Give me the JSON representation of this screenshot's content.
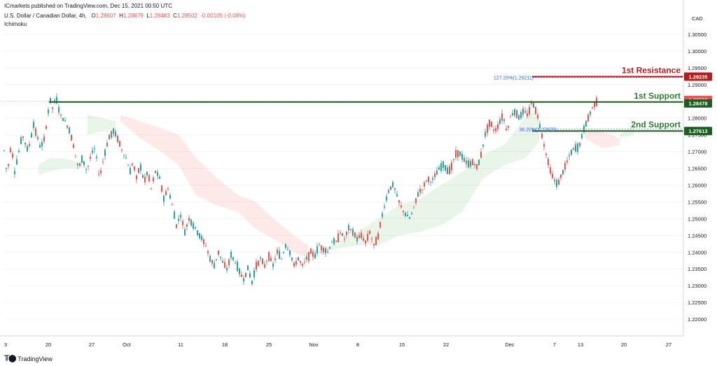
{
  "header": {
    "published": "ICmarkets published on TradingView.com, Dec 15, 2021 00:50 UTC",
    "symbol": "U.S. Dollar / Canadian Dollar, 4h,",
    "ohlc": [
      {
        "k": "O",
        "v": "1.28607"
      },
      {
        "k": "H",
        "v": "1.28679"
      },
      {
        "k": "L",
        "v": "1.28483"
      },
      {
        "k": "C",
        "v": "1.28502"
      }
    ],
    "change": "-0.00105 (-0.08%)",
    "indicator": "Ichimoku"
  },
  "footer": {
    "brand": "TradingView"
  },
  "chart_data": {
    "type": "candlestick",
    "currency": "CAD",
    "ylim": [
      1.215,
      1.31
    ],
    "y_ticks": [
      "1.30500",
      "1.30000",
      "1.29500",
      "1.29000",
      "1.28500",
      "1.28000",
      "1.27500",
      "1.27000",
      "1.26500",
      "1.26000",
      "1.25500",
      "1.25000",
      "1.24500",
      "1.24000",
      "1.23500",
      "1.23000",
      "1.22500",
      "1.22000"
    ],
    "x_ticks": [
      "3",
      "20",
      "27",
      "Oct",
      "11",
      "18",
      "25",
      "Nov",
      "8",
      "15",
      "22",
      "Dec",
      "7",
      "13",
      "20",
      "27"
    ],
    "levels": [
      {
        "name": "1st Resistance",
        "value": 1.29235,
        "price_label": "1.29235",
        "color": "#b71c1c"
      },
      {
        "name": "1st Support",
        "value": 1.28478,
        "price_label": "1.28478",
        "color": "#2e7d32"
      },
      {
        "name": "2nd Support",
        "value": 1.27613,
        "price_label": "1.27613",
        "color": "#2e7d32"
      }
    ],
    "current_price": {
      "value": 1.28502,
      "label": "1.28502",
      "color": "#ef5350"
    },
    "fib_labels": [
      {
        "text": "127.20%(1.29211)",
        "value": 1.29211
      },
      {
        "text": "38.20%(1.27675)",
        "value": 1.27675
      }
    ],
    "price_path": [
      [
        3,
        1.268
      ],
      [
        7,
        1.271
      ],
      [
        10,
        1.262
      ],
      [
        14,
        1.27
      ],
      [
        17,
        1.272
      ],
      [
        20,
        1.263
      ],
      [
        27,
        1.27
      ],
      [
        32,
        1.275
      ],
      [
        40,
        1.27
      ],
      [
        48,
        1.278
      ],
      [
        58,
        1.271
      ],
      [
        64,
        1.274
      ],
      [
        68,
        1.281
      ],
      [
        72,
        1.285
      ],
      [
        75,
        1.283
      ],
      [
        80,
        1.286
      ],
      [
        86,
        1.281
      ],
      [
        93,
        1.279
      ],
      [
        100,
        1.276
      ],
      [
        106,
        1.271
      ],
      [
        112,
        1.265
      ],
      [
        118,
        1.268
      ],
      [
        124,
        1.264
      ],
      [
        130,
        1.269
      ],
      [
        136,
        1.271
      ],
      [
        142,
        1.262
      ],
      [
        148,
        1.268
      ],
      [
        155,
        1.274
      ],
      [
        162,
        1.276
      ],
      [
        168,
        1.274
      ],
      [
        175,
        1.27
      ],
      [
        180,
        1.268
      ],
      [
        186,
        1.264
      ],
      [
        190,
        1.267
      ],
      [
        195,
        1.262
      ],
      [
        200,
        1.266
      ],
      [
        206,
        1.261
      ],
      [
        211,
        1.264
      ],
      [
        216,
        1.259
      ],
      [
        222,
        1.264
      ],
      [
        228,
        1.262
      ],
      [
        234,
        1.256
      ],
      [
        240,
        1.259
      ],
      [
        246,
        1.254
      ],
      [
        252,
        1.248
      ],
      [
        258,
        1.251
      ],
      [
        264,
        1.246
      ],
      [
        270,
        1.25
      ],
      [
        276,
        1.248
      ],
      [
        282,
        1.246
      ],
      [
        288,
        1.244
      ],
      [
        294,
        1.242
      ],
      [
        300,
        1.238
      ],
      [
        306,
        1.236
      ],
      [
        312,
        1.24
      ],
      [
        318,
        1.237
      ],
      [
        324,
        1.235
      ],
      [
        330,
        1.239
      ],
      [
        336,
        1.237
      ],
      [
        342,
        1.234
      ],
      [
        348,
        1.232
      ],
      [
        354,
        1.235
      ],
      [
        360,
        1.231
      ],
      [
        366,
        1.236
      ],
      [
        372,
        1.238
      ],
      [
        378,
        1.236
      ],
      [
        384,
        1.239
      ],
      [
        390,
        1.236
      ],
      [
        396,
        1.24
      ],
      [
        402,
        1.238
      ],
      [
        408,
        1.242
      ],
      [
        414,
        1.24
      ],
      [
        420,
        1.236
      ],
      [
        426,
        1.238
      ],
      [
        432,
        1.236
      ],
      [
        438,
        1.238
      ],
      [
        444,
        1.24
      ],
      [
        450,
        1.239
      ],
      [
        456,
        1.242
      ],
      [
        462,
        1.241
      ],
      [
        468,
        1.24
      ],
      [
        474,
        1.243
      ],
      [
        480,
        1.243
      ],
      [
        486,
        1.246
      ],
      [
        492,
        1.244
      ],
      [
        498,
        1.247
      ],
      [
        504,
        1.246
      ],
      [
        510,
        1.244
      ],
      [
        516,
        1.245
      ],
      [
        522,
        1.243
      ],
      [
        528,
        1.246
      ],
      [
        534,
        1.242
      ],
      [
        540,
        1.245
      ],
      [
        544,
        1.249
      ],
      [
        548,
        1.253
      ],
      [
        552,
        1.256
      ],
      [
        556,
        1.259
      ],
      [
        562,
        1.26
      ],
      [
        568,
        1.256
      ],
      [
        574,
        1.253
      ],
      [
        580,
        1.251
      ],
      [
        586,
        1.25
      ],
      [
        592,
        1.254
      ],
      [
        598,
        1.258
      ],
      [
        604,
        1.259
      ],
      [
        610,
        1.262
      ],
      [
        616,
        1.261
      ],
      [
        622,
        1.263
      ],
      [
        628,
        1.265
      ],
      [
        634,
        1.266
      ],
      [
        640,
        1.264
      ],
      [
        646,
        1.266
      ],
      [
        652,
        1.27
      ],
      [
        658,
        1.269
      ],
      [
        664,
        1.267
      ],
      [
        670,
        1.266
      ],
      [
        676,
        1.267
      ],
      [
        682,
        1.265
      ],
      [
        688,
        1.27
      ],
      [
        694,
        1.276
      ],
      [
        700,
        1.279
      ],
      [
        706,
        1.276
      ],
      [
        712,
        1.278
      ],
      [
        718,
        1.281
      ],
      [
        724,
        1.276
      ],
      [
        730,
        1.281
      ],
      [
        736,
        1.282
      ],
      [
        742,
        1.28
      ],
      [
        748,
        1.282
      ],
      [
        754,
        1.281
      ],
      [
        760,
        1.285
      ],
      [
        766,
        1.282
      ],
      [
        772,
        1.277
      ],
      [
        778,
        1.271
      ],
      [
        784,
        1.266
      ],
      [
        790,
        1.262
      ],
      [
        796,
        1.26
      ],
      [
        802,
        1.263
      ],
      [
        808,
        1.266
      ],
      [
        814,
        1.269
      ],
      [
        820,
        1.271
      ],
      [
        826,
        1.271
      ],
      [
        832,
        1.275
      ],
      [
        836,
        1.278
      ],
      [
        840,
        1.28
      ],
      [
        844,
        1.282
      ],
      [
        848,
        1.284
      ],
      [
        852,
        1.285
      ]
    ],
    "cloud_bands": [
      {
        "kind": "bull",
        "points": [
          [
            55,
            1.263,
            1.266
          ],
          [
            70,
            1.264,
            1.268
          ],
          [
            90,
            1.265,
            1.268
          ],
          [
            110,
            1.265,
            1.267
          ]
        ]
      },
      {
        "kind": "bull",
        "points": [
          [
            125,
            1.275,
            1.281
          ],
          [
            145,
            1.276,
            1.28
          ],
          [
            165,
            1.276,
            1.279
          ]
        ]
      },
      {
        "kind": "bear",
        "points": [
          [
            172,
            1.279,
            1.281
          ],
          [
            200,
            1.274,
            1.279
          ],
          [
            230,
            1.27,
            1.277
          ],
          [
            255,
            1.266,
            1.275
          ],
          [
            280,
            1.257,
            1.268
          ],
          [
            310,
            1.254,
            1.262
          ],
          [
            340,
            1.252,
            1.257
          ],
          [
            365,
            1.247,
            1.255
          ],
          [
            390,
            1.244,
            1.25
          ],
          [
            420,
            1.24,
            1.245
          ],
          [
            440,
            1.238,
            1.242
          ]
        ]
      },
      {
        "kind": "bull",
        "points": [
          [
            450,
            1.239,
            1.24
          ],
          [
            480,
            1.241,
            1.243
          ],
          [
            510,
            1.242,
            1.246
          ],
          [
            540,
            1.242,
            1.25
          ],
          [
            570,
            1.245,
            1.254
          ],
          [
            600,
            1.246,
            1.256
          ],
          [
            630,
            1.248,
            1.26
          ],
          [
            660,
            1.252,
            1.264
          ],
          [
            690,
            1.262,
            1.269
          ],
          [
            720,
            1.266,
            1.272
          ],
          [
            750,
            1.268,
            1.28
          ],
          [
            770,
            1.273,
            1.283
          ]
        ]
      },
      {
        "kind": "bear",
        "points": [
          [
            835,
            1.274,
            1.276
          ],
          [
            860,
            1.271,
            1.276
          ],
          [
            885,
            1.272,
            1.274
          ]
        ]
      },
      {
        "kind": "bull",
        "points": [
          [
            885,
            1.274,
            1.275
          ],
          [
            905,
            1.275,
            1.278
          ]
        ]
      }
    ]
  }
}
